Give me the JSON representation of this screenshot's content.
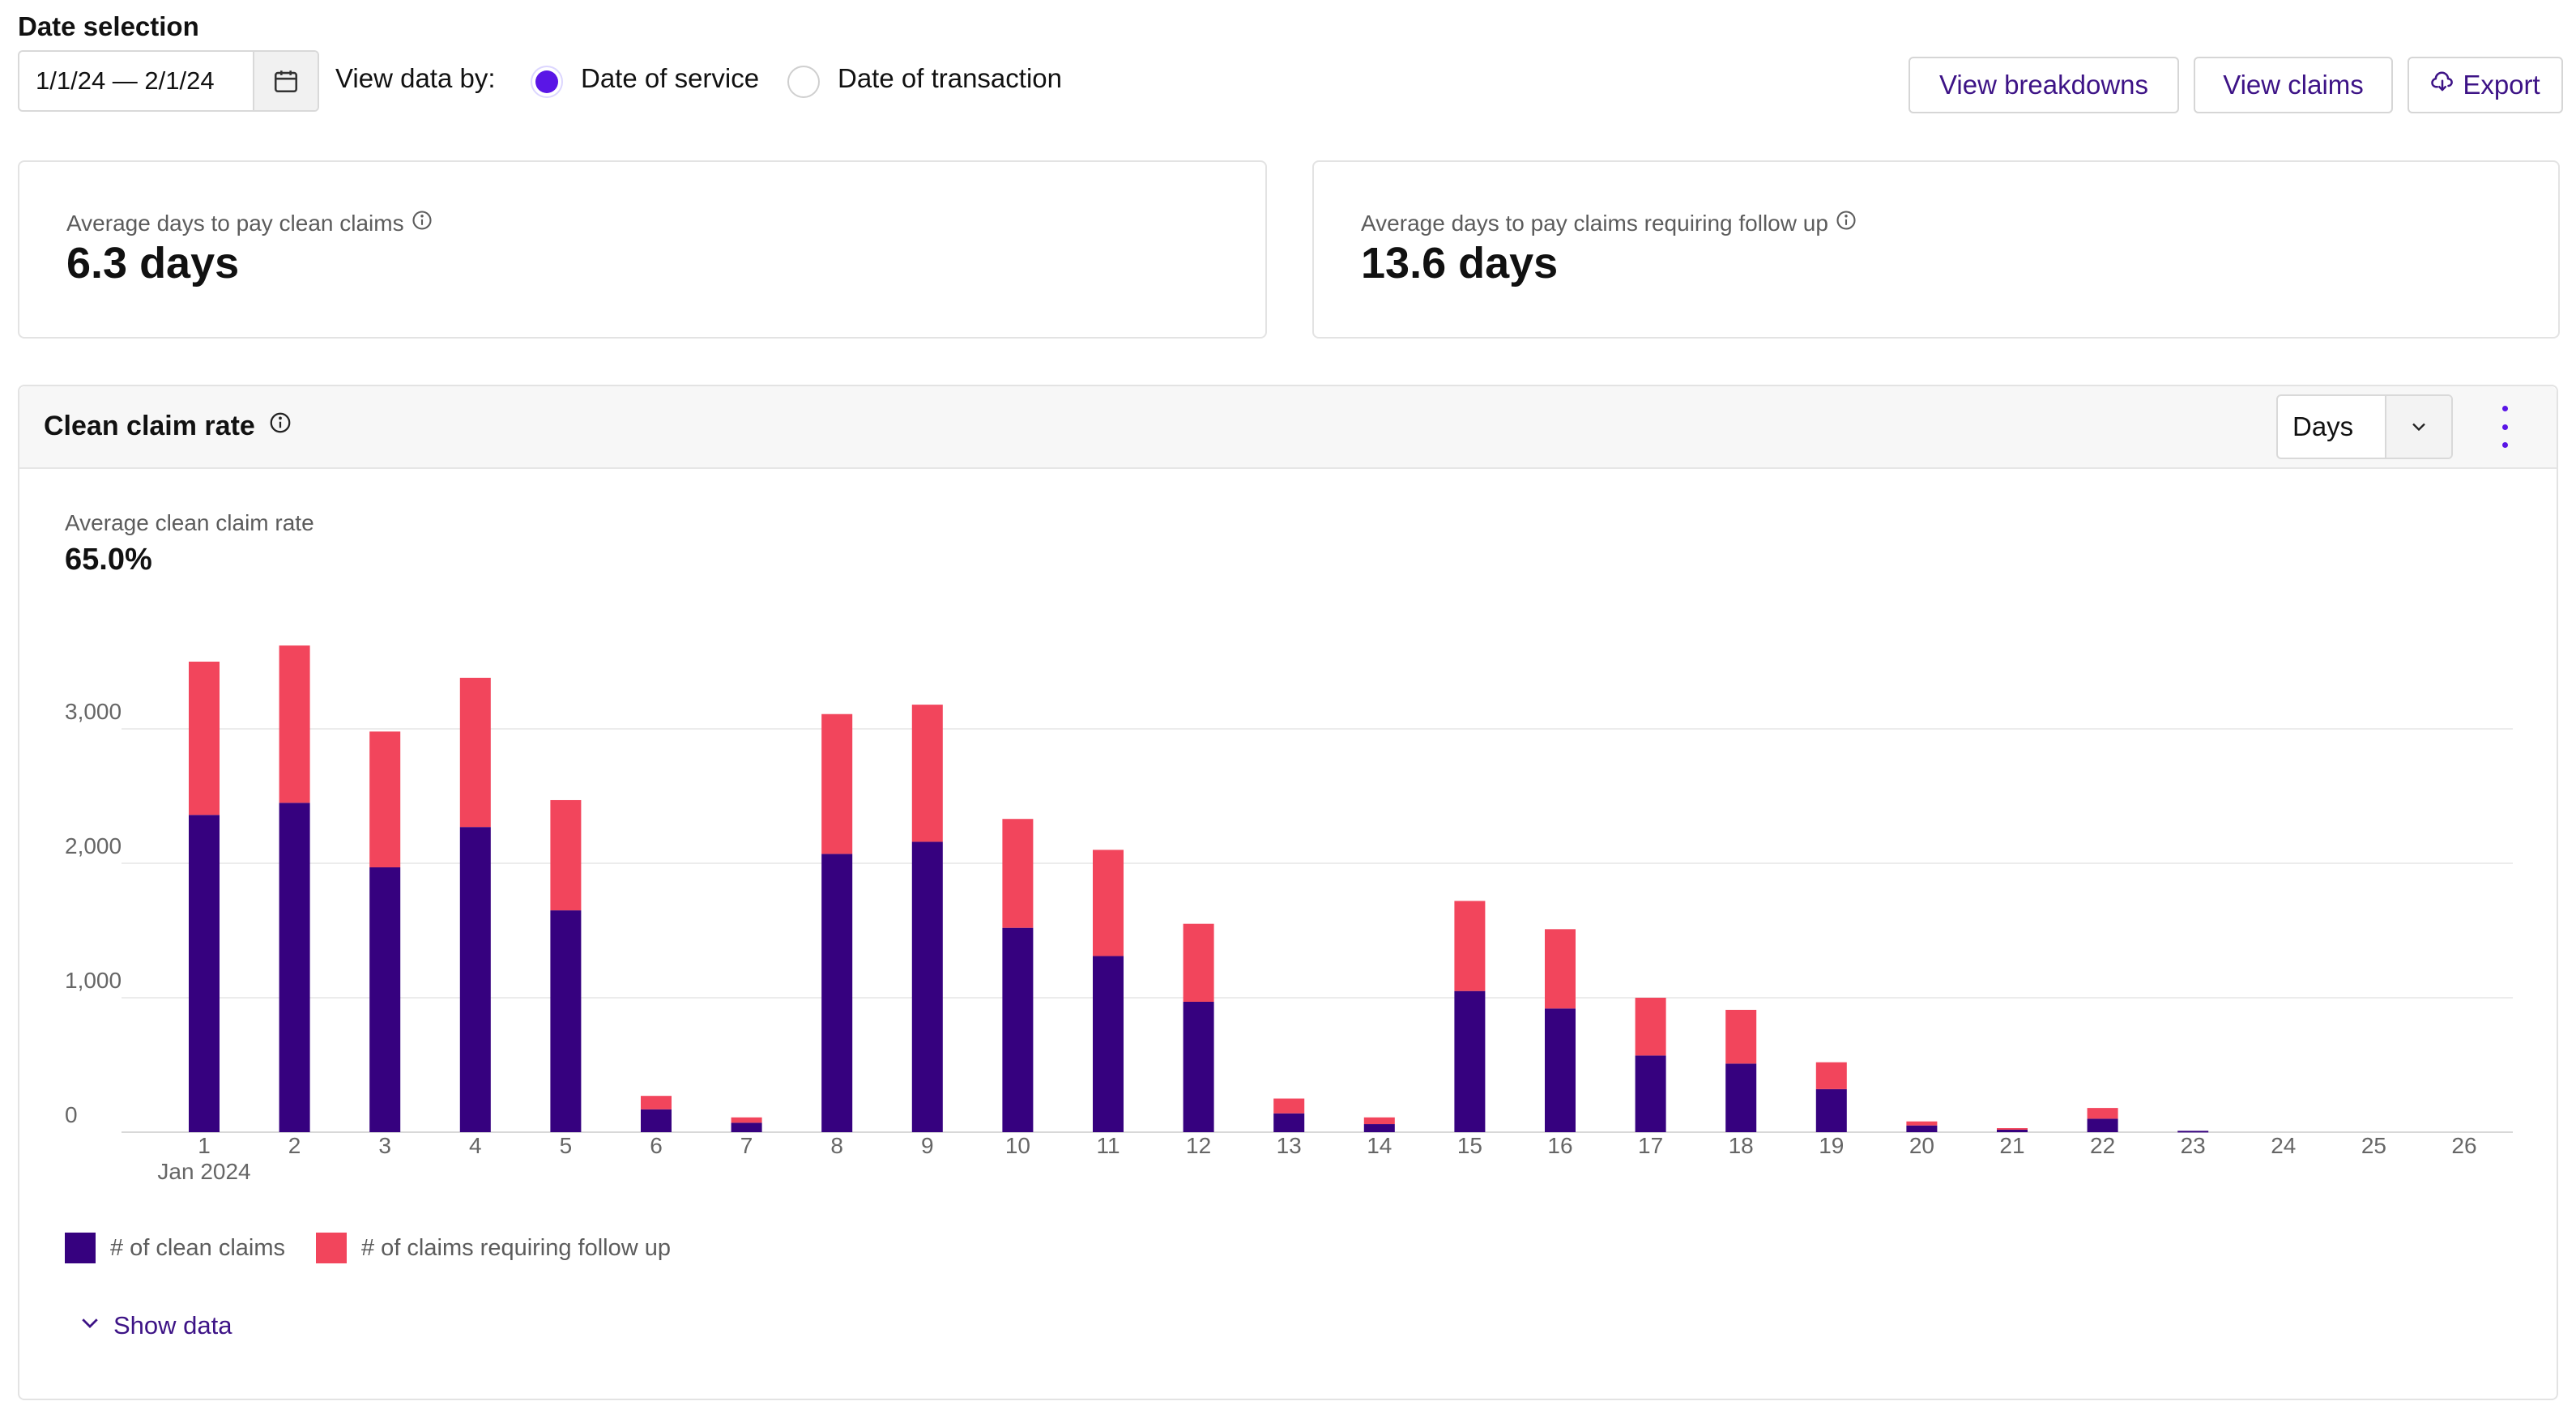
{
  "header": {
    "date_selection_label": "Date selection",
    "date_range": "1/1/24 — 2/1/24",
    "view_by_label": "View data by:",
    "options": [
      {
        "label": "Date of service",
        "selected": true
      },
      {
        "label": "Date of transaction",
        "selected": false
      }
    ]
  },
  "actions": {
    "view_breakdowns": "View breakdowns",
    "view_claims": "View claims",
    "export": "Export"
  },
  "kpis": [
    {
      "label": "Average days to pay clean claims",
      "value": "6.3 days"
    },
    {
      "label": "Average days to pay claims requiring follow up",
      "value": "13.6 days"
    }
  ],
  "panel": {
    "title": "Clean claim rate",
    "granularity": "Days",
    "avg_label": "Average clean claim rate",
    "avg_value": "65.0%",
    "show_data": "Show data"
  },
  "colors": {
    "clean": "#36017f",
    "follow_up": "#f2455c",
    "accent": "#5a16e6",
    "link": "#3d1386"
  },
  "chart_data": {
    "type": "bar",
    "stacked": true,
    "categories": [
      "1",
      "2",
      "3",
      "4",
      "5",
      "6",
      "7",
      "8",
      "9",
      "10",
      "11",
      "12",
      "13",
      "14",
      "15",
      "16",
      "17",
      "18",
      "19",
      "20",
      "21",
      "22",
      "23",
      "24",
      "25",
      "26"
    ],
    "x_sublabel": "Jan 2024",
    "series": [
      {
        "name": "# of clean claims",
        "color": "#36017f",
        "values": [
          2360,
          2450,
          1970,
          2270,
          1650,
          170,
          70,
          2070,
          2160,
          1520,
          1310,
          970,
          140,
          60,
          1050,
          920,
          570,
          510,
          320,
          50,
          20,
          100,
          10,
          0,
          0,
          0
        ]
      },
      {
        "name": "# of claims requiring follow up",
        "color": "#f2455c",
        "values": [
          1140,
          1170,
          1010,
          1110,
          820,
          100,
          40,
          1040,
          1020,
          810,
          790,
          580,
          110,
          50,
          670,
          590,
          430,
          400,
          200,
          30,
          10,
          80,
          0,
          0,
          0,
          0
        ]
      }
    ],
    "y_ticks": [
      0,
      1000,
      2000,
      3000
    ],
    "y_tick_labels": [
      "0",
      "1,000",
      "2,000",
      "3,000"
    ],
    "ylim": [
      0,
      3700
    ],
    "legend": [
      "# of clean claims",
      "# of claims requiring follow up"
    ],
    "legend_position": "bottom-left"
  }
}
